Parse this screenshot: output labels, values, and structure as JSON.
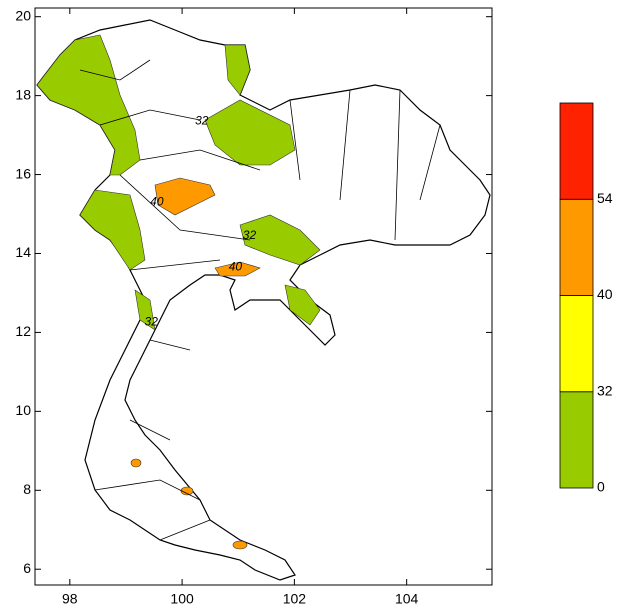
{
  "map": {
    "xlim": [
      97.38,
      105.52
    ],
    "ylim": [
      5.6,
      20.22
    ],
    "xticks": [
      98,
      100,
      102,
      104
    ],
    "yticks": [
      6,
      8,
      10,
      12,
      14,
      16,
      18,
      20
    ],
    "colorbar": {
      "boundaries": [
        0,
        32,
        40,
        54
      ],
      "colors": [
        "#99cc00",
        "#ffff00",
        "#ff9900",
        "#ff2200"
      ]
    },
    "contour_labels": [
      {
        "text": "32",
        "lon": 101.2,
        "lat": 14.45
      },
      {
        "text": "40",
        "lon": 100.95,
        "lat": 13.65
      },
      {
        "text": "32",
        "lon": 99.45,
        "lat": 12.25
      },
      {
        "text": "40",
        "lon": 99.55,
        "lat": 15.3
      },
      {
        "text": "32",
        "lon": 100.35,
        "lat": 17.35
      }
    ]
  }
}
